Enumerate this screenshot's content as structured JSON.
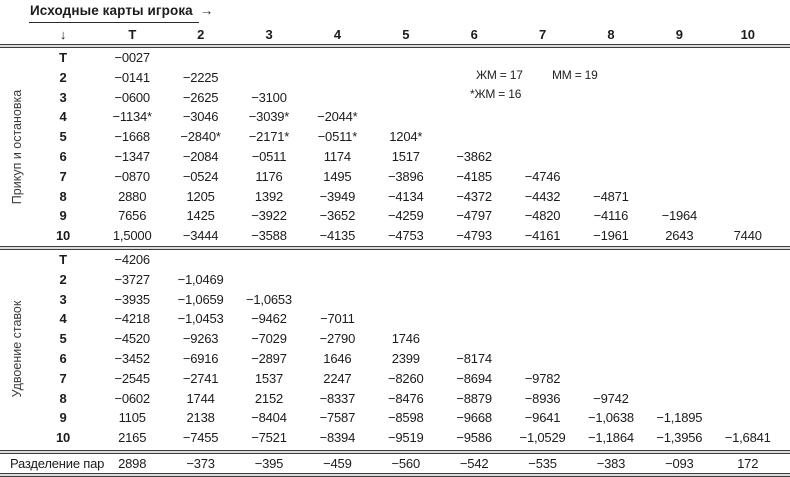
{
  "header": {
    "title": "Исходные карты игрока",
    "right_arrow": "→",
    "down_arrow": "↓",
    "columns": [
      "Т",
      "2",
      "3",
      "4",
      "5",
      "6",
      "7",
      "8",
      "9",
      "10"
    ]
  },
  "notes": {
    "zm17": "ЖМ = 17",
    "mm19": "ММ = 19",
    "zm16": "*ЖМ = 16"
  },
  "sections": [
    {
      "label": "Прикуп и остановка",
      "rows": [
        {
          "label": "Т",
          "values": [
            "−0027"
          ]
        },
        {
          "label": "2",
          "values": [
            "−0141",
            "−2225"
          ]
        },
        {
          "label": "3",
          "values": [
            "−0600",
            "−2625",
            "−3100"
          ]
        },
        {
          "label": "4",
          "values": [
            "−1134*",
            "−3046",
            "−3039*",
            "−2044*"
          ]
        },
        {
          "label": "5",
          "values": [
            "−1668",
            "−2840*",
            "−2171*",
            "−0511*",
            "1204*"
          ]
        },
        {
          "label": "6",
          "values": [
            "−1347",
            "−2084",
            "−0511",
            "1174",
            "1517",
            "−3862"
          ]
        },
        {
          "label": "7",
          "values": [
            "−0870",
            "−0524",
            "1176",
            "1495",
            "−3896",
            "−4185",
            "−4746"
          ]
        },
        {
          "label": "8",
          "values": [
            "2880",
            "1205",
            "1392",
            "−3949",
            "−4134",
            "−4372",
            "−4432",
            "−4871"
          ]
        },
        {
          "label": "9",
          "values": [
            "7656",
            "1425",
            "−3922",
            "−3652",
            "−4259",
            "−4797",
            "−4820",
            "−4116",
            "−1964"
          ]
        },
        {
          "label": "10",
          "values": [
            "1,5000",
            "−3444",
            "−3588",
            "−4135",
            "−4753",
            "−4793",
            "−4161",
            "−1961",
            "2643",
            "7440"
          ]
        }
      ]
    },
    {
      "label": "Удвоение ставок",
      "rows": [
        {
          "label": "Т",
          "values": [
            "−4206"
          ]
        },
        {
          "label": "2",
          "values": [
            "−3727",
            "−1,0469"
          ]
        },
        {
          "label": "3",
          "values": [
            "−3935",
            "−1,0659",
            "−1,0653"
          ]
        },
        {
          "label": "4",
          "values": [
            "−4218",
            "−1,0453",
            "−9462",
            "−7011"
          ]
        },
        {
          "label": "5",
          "values": [
            "−4520",
            "−9263",
            "−7029",
            "−2790",
            "1746"
          ]
        },
        {
          "label": "6",
          "values": [
            "−3452",
            "−6916",
            "−2897",
            "1646",
            "2399",
            "−8174"
          ]
        },
        {
          "label": "7",
          "values": [
            "−2545",
            "−2741",
            "1537",
            "2247",
            "−8260",
            "−8694",
            "−9782"
          ]
        },
        {
          "label": "8",
          "values": [
            "−0602",
            "1744",
            "2152",
            "−8337",
            "−8476",
            "−8879",
            "−8936",
            "−9742"
          ]
        },
        {
          "label": "9",
          "values": [
            "1105",
            "2138",
            "−8404",
            "−7587",
            "−8598",
            "−9668",
            "−9641",
            "−1,0638",
            "−1,1895"
          ]
        },
        {
          "label": "10",
          "values": [
            "2165",
            "−7455",
            "−7521",
            "−8394",
            "−9519",
            "−9586",
            "−1,0529",
            "−1,1864",
            "−1,3956",
            "−1,6841"
          ]
        }
      ]
    }
  ],
  "footer": {
    "label": "Разделение пар",
    "values": [
      "2898",
      "−373",
      "−395",
      "−459",
      "−560",
      "−542",
      "−535",
      "−383",
      "−093",
      "172"
    ]
  }
}
